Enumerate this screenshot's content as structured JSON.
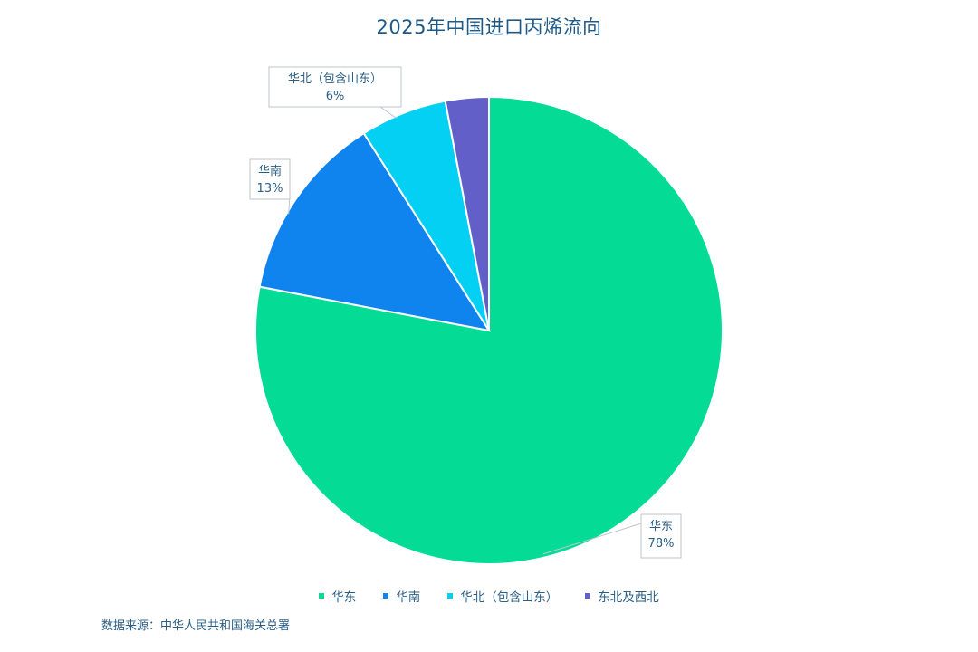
{
  "chart_data": {
    "type": "pie",
    "title": "2025年中国进口丙烯流向",
    "slices": [
      {
        "name": "华东",
        "value": 78,
        "label": "78%",
        "color": "#04dc95",
        "callout_lines": [
          "华东",
          "78%"
        ]
      },
      {
        "name": "华南",
        "value": 13,
        "label": "13%",
        "color": "#0f84ef",
        "callout_lines": [
          "华南",
          "13%"
        ]
      },
      {
        "name": "华北（包含山东）",
        "value": 6,
        "label": "6%",
        "color": "#03d0f2",
        "callout_lines": [
          "华北（包含山东）",
          "6%"
        ]
      },
      {
        "name": "东北及西北",
        "value": 3,
        "label": "",
        "color": "#625fc9",
        "callout_lines": []
      }
    ],
    "legend_position": "bottom"
  },
  "source": "数据来源：中华人民共和国海关总署"
}
